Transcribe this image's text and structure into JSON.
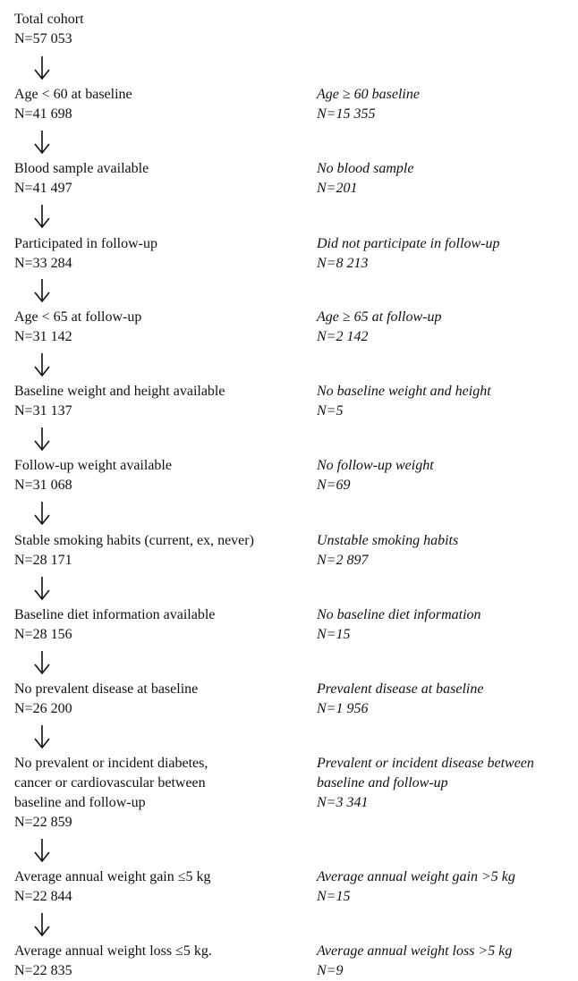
{
  "steps": [
    {
      "label": "Total cohort",
      "n": "N=57 053"
    },
    {
      "label": "Age < 60 at baseline",
      "n": "N=41 698"
    },
    {
      "label": "Blood sample available",
      "n": "N=41 497"
    },
    {
      "label": "Participated in follow-up",
      "n": "N=33 284"
    },
    {
      "label": "Age < 65 at follow-up",
      "n": "N=31 142"
    },
    {
      "label": "Baseline weight and height available",
      "n": "N=31 137"
    },
    {
      "label": "Follow-up weight available",
      "n": "N=31 068"
    },
    {
      "label": "Stable smoking habits (current, ex, never)",
      "n": "N=28 171"
    },
    {
      "label": "Baseline diet information available",
      "n": "N=28 156"
    },
    {
      "label": "No prevalent disease at baseline",
      "n": "N=26 200"
    },
    {
      "label_lines": [
        "No prevalent or incident diabetes,",
        "cancer or cardiovascular between",
        "baseline and follow-up"
      ],
      "n": "N=22 859"
    },
    {
      "label": "Average annual weight gain ≤5 kg",
      "n": "N=22 844"
    },
    {
      "label": "Average annual weight loss ≤5 kg.",
      "n": "N=22 835"
    }
  ],
  "exclusions": [
    {
      "label": "Age ≥ 60 baseline",
      "n": "N=15 355"
    },
    {
      "label": "No blood sample",
      "n": "N=201"
    },
    {
      "label": "Did not participate in follow-up",
      "n": "N=8 213"
    },
    {
      "label": "Age ≥ 65 at follow-up",
      "n": "N=2 142"
    },
    {
      "label": "No baseline weight and height",
      "n": "N=5"
    },
    {
      "label": "No follow-up weight",
      "n": "N=69"
    },
    {
      "label": "Unstable smoking habits",
      "n": "N=2 897"
    },
    {
      "label": "No baseline diet information",
      "n": "N=15"
    },
    {
      "label": "Prevalent disease at baseline",
      "n": "N=1 956"
    },
    {
      "label_lines": [
        "Prevalent or incident disease between",
        "baseline and follow-up"
      ],
      "n": "N=3 341"
    },
    {
      "label": "Average annual weight gain >5 kg",
      "n": "N=15"
    },
    {
      "label": "Average annual weight loss >5 kg",
      "n": "N=9"
    }
  ]
}
